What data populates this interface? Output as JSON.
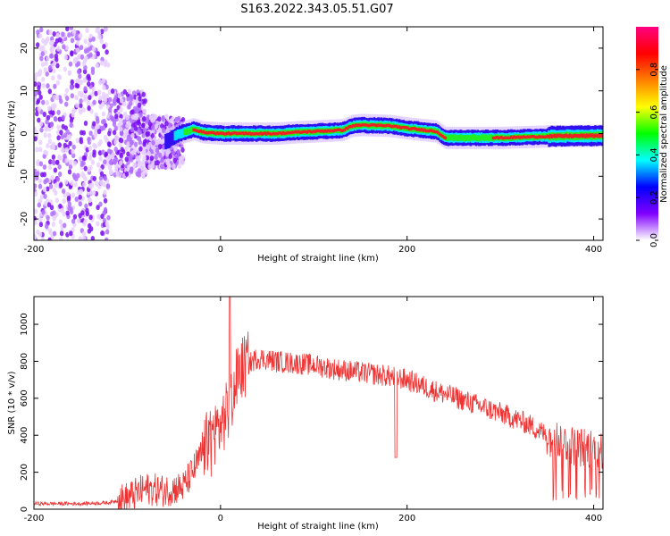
{
  "title": "S163.2022.343.05.51.G07",
  "chart_data": [
    {
      "type": "heatmap",
      "xlabel": "Height of straight line (km)",
      "ylabel": "Frequency (Hz)",
      "xlim": [
        -200,
        410
      ],
      "ylim": [
        -25,
        25
      ],
      "xticks": [
        -200,
        0,
        200,
        400
      ],
      "yticks": [
        -20,
        -10,
        0,
        10,
        20
      ],
      "colorbar": {
        "label": "Normalized spectral amplitude",
        "range": [
          0,
          1
        ],
        "ticks": [
          "0.0",
          "0.2",
          "0.4",
          "0.6",
          "0.8"
        ],
        "colors": [
          "#ffffff",
          "#8000ff",
          "#0000ff",
          "#00ffff",
          "#00ff00",
          "#ffff00",
          "#ff8000",
          "#ff0000",
          "#ff0080"
        ]
      },
      "ridge_x": [
        -60,
        -45,
        -30,
        -20,
        0,
        60,
        80,
        100,
        130,
        140,
        150,
        180,
        200,
        230,
        240,
        300,
        330,
        360,
        410
      ],
      "ridge_freq": [
        -2,
        0,
        1,
        0.3,
        0,
        0,
        0.3,
        0.5,
        0.8,
        1.8,
        2,
        1.8,
        1.2,
        0.5,
        -1,
        -1,
        -0.8,
        -0.6,
        -0.5
      ]
    },
    {
      "type": "line",
      "xlabel": "Height of straight line (km)",
      "ylabel": "SNR (10 * v/v)",
      "xlim": [
        -200,
        410
      ],
      "ylim": [
        0,
        1150
      ],
      "xticks": [
        -200,
        0,
        200,
        400
      ],
      "yticks": [
        0,
        200,
        400,
        600,
        800,
        1000
      ],
      "color": "#ee3333",
      "x": [
        -200,
        -150,
        -120,
        -100,
        -80,
        -60,
        -40,
        -30,
        -20,
        -10,
        0,
        10,
        20,
        40,
        60,
        80,
        100,
        120,
        150,
        180,
        200,
        230,
        260,
        300,
        330,
        350,
        380,
        410
      ],
      "y": [
        30,
        30,
        35,
        60,
        110,
        100,
        120,
        200,
        300,
        400,
        450,
        550,
        750,
        820,
        800,
        790,
        780,
        760,
        740,
        720,
        700,
        640,
        590,
        520,
        460,
        400,
        340,
        320
      ]
    }
  ]
}
